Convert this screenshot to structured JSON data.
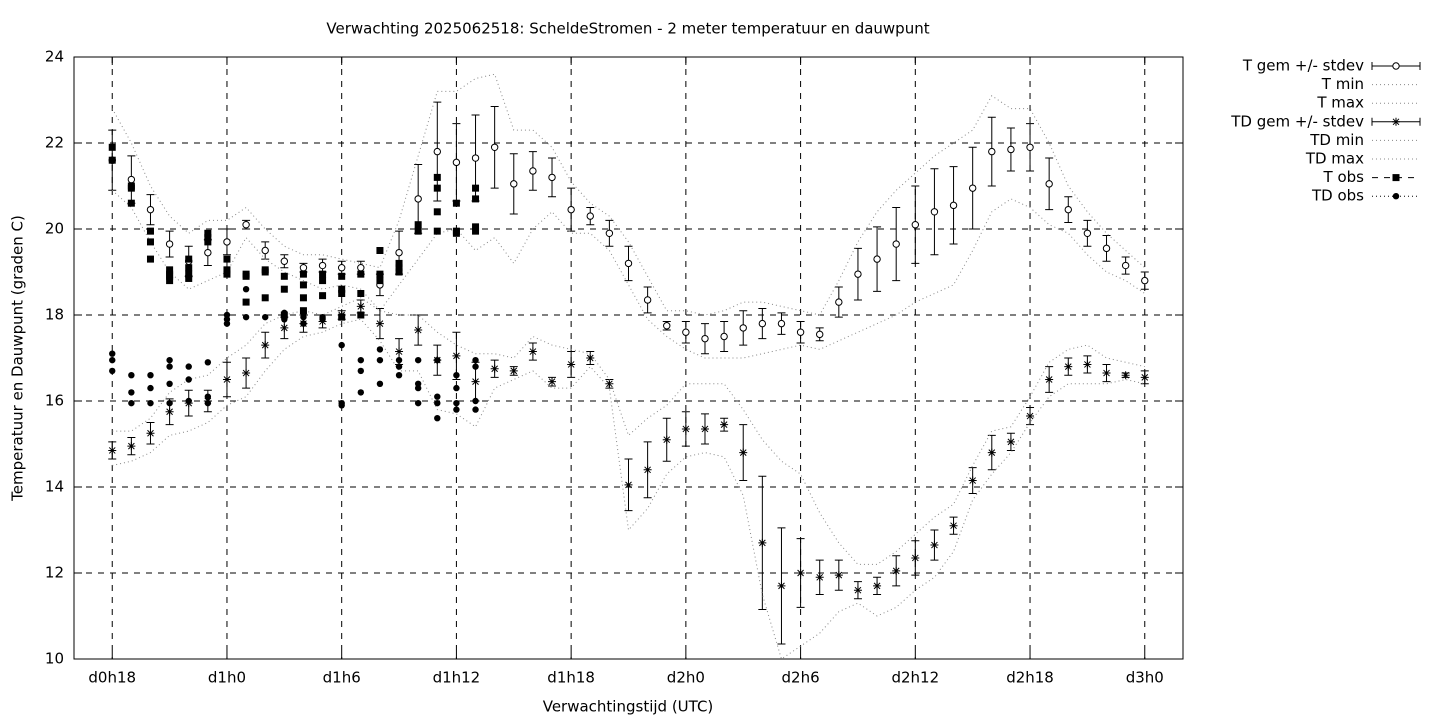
{
  "chart_data": {
    "type": "errorbar",
    "title": "Verwachting 2025062518: ScheldeStromen - 2 meter temperatuur en dauwpunt",
    "xlabel": "Verwachtingstijd (UTC)",
    "ylabel": "Temperatuur en Dauwpunt (graden C)",
    "xlim": [
      16,
      74
    ],
    "ylim": [
      10,
      24
    ],
    "xticks": [
      {
        "value": 18,
        "label": "d0h18"
      },
      {
        "value": 24,
        "label": "d1h0"
      },
      {
        "value": 30,
        "label": "d1h6"
      },
      {
        "value": 36,
        "label": "d1h12"
      },
      {
        "value": 42,
        "label": "d1h18"
      },
      {
        "value": 48,
        "label": "d2h0"
      },
      {
        "value": 54,
        "label": "d2h6"
      },
      {
        "value": 60,
        "label": "d2h12"
      },
      {
        "value": 66,
        "label": "d2h18"
      },
      {
        "value": 72,
        "label": "d3h0"
      }
    ],
    "yticks": [
      10,
      12,
      14,
      16,
      18,
      20,
      22,
      24
    ],
    "grid": true,
    "legend": "outside-top-right",
    "x": [
      18,
      19,
      20,
      21,
      22,
      23,
      24,
      25,
      26,
      27,
      28,
      29,
      30,
      31,
      32,
      33,
      34,
      35,
      36,
      37,
      38,
      39,
      40,
      41,
      42,
      43,
      44,
      45,
      46,
      47,
      48,
      49,
      50,
      51,
      52,
      53,
      54,
      55,
      56,
      57,
      58,
      59,
      60,
      61,
      62,
      63,
      64,
      65,
      66,
      67,
      68,
      69,
      70,
      71,
      72
    ],
    "series": [
      {
        "name": "T gem +/- stdev",
        "style": "errorbar",
        "marker": "circle",
        "color": "#000000",
        "values": [
          21.6,
          21.15,
          20.45,
          19.65,
          19.25,
          19.45,
          19.7,
          20.1,
          19.5,
          19.25,
          19.1,
          19.15,
          19.1,
          19.1,
          18.7,
          19.45,
          20.7,
          21.8,
          21.55,
          21.65,
          21.9,
          21.05,
          21.35,
          21.2,
          20.45,
          20.3,
          19.9,
          19.2,
          18.35,
          17.75,
          17.6,
          17.45,
          17.5,
          17.7,
          17.8,
          17.8,
          17.6,
          17.55,
          18.3,
          18.95,
          19.3,
          19.65,
          20.1,
          20.4,
          20.55,
          20.95,
          21.8,
          21.85,
          21.9,
          21.05,
          20.45,
          19.9,
          19.55,
          19.15,
          18.8
        ],
        "errors": [
          0.7,
          0.55,
          0.35,
          0.3,
          0.35,
          0.3,
          0.3,
          0.1,
          0.2,
          0.15,
          0.1,
          0.15,
          0.15,
          0.15,
          0.25,
          0.5,
          0.8,
          1.15,
          0.9,
          1.0,
          0.95,
          0.7,
          0.45,
          0.45,
          0.5,
          0.2,
          0.3,
          0.4,
          0.3,
          0.1,
          0.25,
          0.35,
          0.35,
          0.4,
          0.35,
          0.25,
          0.25,
          0.15,
          0.35,
          0.6,
          0.75,
          0.85,
          0.9,
          1.0,
          0.9,
          0.95,
          0.8,
          0.5,
          0.55,
          0.6,
          0.3,
          0.3,
          0.3,
          0.2,
          0.2
        ]
      },
      {
        "name": "T min",
        "style": "dotted",
        "color": "#888888",
        "values": [
          20.9,
          20.5,
          19.7,
          19.0,
          18.6,
          18.8,
          19.0,
          19.8,
          19.3,
          19.0,
          18.8,
          18.6,
          18.7,
          18.6,
          18.1,
          18.7,
          19.3,
          19.9,
          20.0,
          19.5,
          19.8,
          19.2,
          20.0,
          20.4,
          19.9,
          19.9,
          19.5,
          18.7,
          17.9,
          17.5,
          17.2,
          17.0,
          17.0,
          17.0,
          17.1,
          17.2,
          17.3,
          17.2,
          17.4,
          17.6,
          17.8,
          18.0,
          18.3,
          18.5,
          18.7,
          19.5,
          20.4,
          20.7,
          20.5,
          20.1,
          19.9,
          19.4,
          19.0,
          18.8,
          18.5
        ]
      },
      {
        "name": "T max",
        "style": "dotted",
        "color": "#888888",
        "values": [
          22.8,
          22.0,
          21.0,
          20.3,
          19.9,
          20.2,
          20.2,
          20.5,
          20.0,
          19.6,
          19.4,
          19.4,
          19.3,
          19.2,
          19.1,
          20.2,
          21.7,
          23.2,
          23.2,
          23.5,
          23.6,
          22.3,
          22.3,
          21.9,
          21.1,
          20.6,
          20.3,
          19.7,
          18.9,
          18.1,
          18.1,
          18.0,
          18.1,
          18.3,
          18.3,
          18.2,
          18.1,
          18.0,
          18.8,
          19.7,
          20.4,
          20.9,
          21.3,
          21.7,
          22.0,
          22.3,
          23.1,
          22.8,
          22.8,
          22.0,
          21.0,
          20.4,
          19.9,
          19.5,
          19.1
        ]
      },
      {
        "name": "TD gem +/- stdev",
        "style": "errorbar",
        "marker": "star",
        "color": "#000000",
        "values": [
          14.85,
          14.95,
          15.25,
          15.75,
          15.95,
          16.0,
          16.5,
          16.65,
          17.3,
          17.7,
          17.8,
          17.85,
          18.0,
          18.2,
          17.8,
          17.15,
          17.65,
          16.95,
          17.05,
          16.45,
          16.75,
          16.7,
          17.15,
          16.45,
          16.85,
          17.0,
          16.4,
          14.05,
          14.4,
          15.1,
          15.35,
          15.35,
          15.45,
          14.8,
          12.7,
          11.7,
          12.0,
          11.9,
          11.95,
          11.6,
          11.7,
          12.05,
          12.35,
          12.65,
          13.1,
          14.15,
          14.8,
          15.05,
          15.65,
          16.5,
          16.8,
          16.85,
          16.65,
          16.6,
          16.55
        ],
        "errors": [
          0.2,
          0.2,
          0.25,
          0.3,
          0.3,
          0.25,
          0.4,
          0.35,
          0.3,
          0.25,
          0.2,
          0.15,
          0.1,
          0.15,
          0.35,
          0.3,
          0.35,
          0.35,
          0.55,
          0.45,
          0.2,
          0.1,
          0.2,
          0.1,
          0.3,
          0.15,
          0.1,
          0.6,
          0.65,
          0.5,
          0.4,
          0.35,
          0.15,
          0.65,
          1.55,
          1.35,
          0.8,
          0.4,
          0.35,
          0.2,
          0.2,
          0.35,
          0.4,
          0.35,
          0.2,
          0.3,
          0.4,
          0.2,
          0.2,
          0.3,
          0.2,
          0.2,
          0.2,
          0.05,
          0.15
        ]
      },
      {
        "name": "TD min",
        "style": "dotted",
        "color": "#888888",
        "values": [
          14.5,
          14.6,
          14.8,
          15.2,
          15.3,
          15.5,
          15.9,
          16.1,
          16.7,
          17.2,
          17.5,
          17.6,
          17.8,
          17.9,
          17.4,
          16.7,
          16.7,
          15.8,
          15.7,
          15.4,
          16.3,
          16.5,
          16.7,
          16.3,
          16.3,
          16.8,
          16.3,
          13.0,
          13.5,
          14.3,
          14.7,
          14.8,
          14.7,
          13.8,
          11.5,
          10.0,
          10.3,
          10.6,
          11.1,
          11.3,
          11.0,
          11.2,
          11.6,
          11.9,
          12.5,
          13.7,
          14.3,
          14.8,
          15.5,
          16.1,
          16.4,
          16.4,
          16.4,
          16.5,
          16.4
        ]
      },
      {
        "name": "TD max",
        "style": "dotted",
        "color": "#888888",
        "values": [
          15.3,
          15.3,
          15.6,
          16.2,
          16.5,
          16.6,
          17.0,
          17.3,
          17.8,
          18.0,
          18.1,
          18.0,
          18.2,
          18.4,
          18.1,
          18.0,
          18.0,
          17.6,
          17.3,
          17.1,
          17.1,
          17.0,
          17.5,
          17.3,
          17.2,
          17.1,
          16.5,
          15.2,
          15.6,
          15.9,
          16.4,
          16.4,
          16.4,
          15.8,
          15.1,
          14.6,
          14.3,
          13.4,
          12.7,
          12.2,
          12.2,
          12.5,
          12.9,
          13.3,
          13.6,
          14.5,
          15.3,
          15.4,
          16.1,
          16.9,
          17.2,
          17.3,
          17.0,
          16.9,
          16.8
        ]
      },
      {
        "name": "T obs",
        "style": "points",
        "marker": "square",
        "color": "#000000",
        "x": [
          18,
          18,
          19,
          19,
          19,
          20,
          20,
          20,
          21,
          21,
          21,
          21,
          22,
          22,
          22,
          22,
          23,
          23,
          23,
          24,
          24,
          24,
          25,
          25,
          25,
          26,
          26,
          26,
          27,
          27,
          27,
          28,
          28,
          28,
          28,
          29,
          29,
          29,
          30,
          30,
          30,
          30,
          31,
          31,
          31,
          32,
          32,
          32,
          33,
          33,
          33,
          34,
          34,
          35,
          35,
          35,
          35,
          36,
          36,
          36,
          37,
          37,
          37,
          37
        ],
        "values": [
          21.9,
          21.6,
          21.0,
          20.95,
          20.6,
          19.95,
          19.7,
          19.3,
          19.05,
          18.95,
          18.8,
          18.9,
          19.3,
          19.1,
          18.95,
          18.85,
          19.9,
          19.8,
          19.7,
          19.3,
          19.05,
          18.95,
          18.95,
          18.9,
          18.3,
          19.05,
          19.0,
          18.4,
          18.9,
          18.6,
          18.0,
          18.95,
          18.7,
          18.4,
          18.1,
          18.95,
          18.8,
          18.45,
          18.9,
          18.6,
          18.5,
          17.95,
          18.95,
          18.5,
          18.0,
          19.5,
          18.95,
          18.8,
          19.2,
          19.1,
          19.0,
          20.1,
          19.95,
          21.2,
          20.95,
          20.4,
          19.95,
          20.6,
          19.95,
          19.9,
          20.95,
          20.7,
          20.05,
          19.95
        ]
      },
      {
        "name": "TD obs",
        "style": "points",
        "marker": "dot",
        "color": "#000000",
        "x": [
          18,
          18,
          18,
          19,
          19,
          19,
          20,
          20,
          20,
          21,
          21,
          21,
          21,
          22,
          22,
          22,
          23,
          23,
          23,
          24,
          24,
          24,
          25,
          25,
          26,
          26,
          27,
          27,
          28,
          28,
          28,
          29,
          29,
          30,
          30,
          30,
          31,
          31,
          31,
          32,
          32,
          32,
          33,
          33,
          33,
          34,
          34,
          34,
          34,
          35,
          35,
          35,
          35,
          36,
          36,
          36,
          36,
          37,
          37,
          37,
          37
        ],
        "values": [
          17.1,
          16.95,
          16.7,
          16.6,
          16.2,
          15.95,
          16.6,
          16.3,
          15.95,
          16.95,
          16.8,
          16.4,
          15.95,
          16.8,
          16.5,
          16.0,
          16.9,
          16.1,
          15.95,
          18.0,
          17.9,
          17.8,
          18.6,
          17.95,
          18.4,
          17.95,
          18.05,
          17.9,
          18.05,
          17.95,
          17.8,
          17.95,
          17.9,
          17.3,
          15.95,
          15.9,
          16.95,
          16.7,
          16.2,
          17.2,
          16.95,
          16.4,
          16.95,
          16.8,
          16.6,
          16.95,
          16.4,
          16.3,
          15.95,
          16.95,
          16.1,
          15.95,
          15.6,
          16.6,
          16.3,
          15.95,
          15.8,
          16.95,
          16.8,
          16.0,
          15.8
        ]
      }
    ]
  }
}
